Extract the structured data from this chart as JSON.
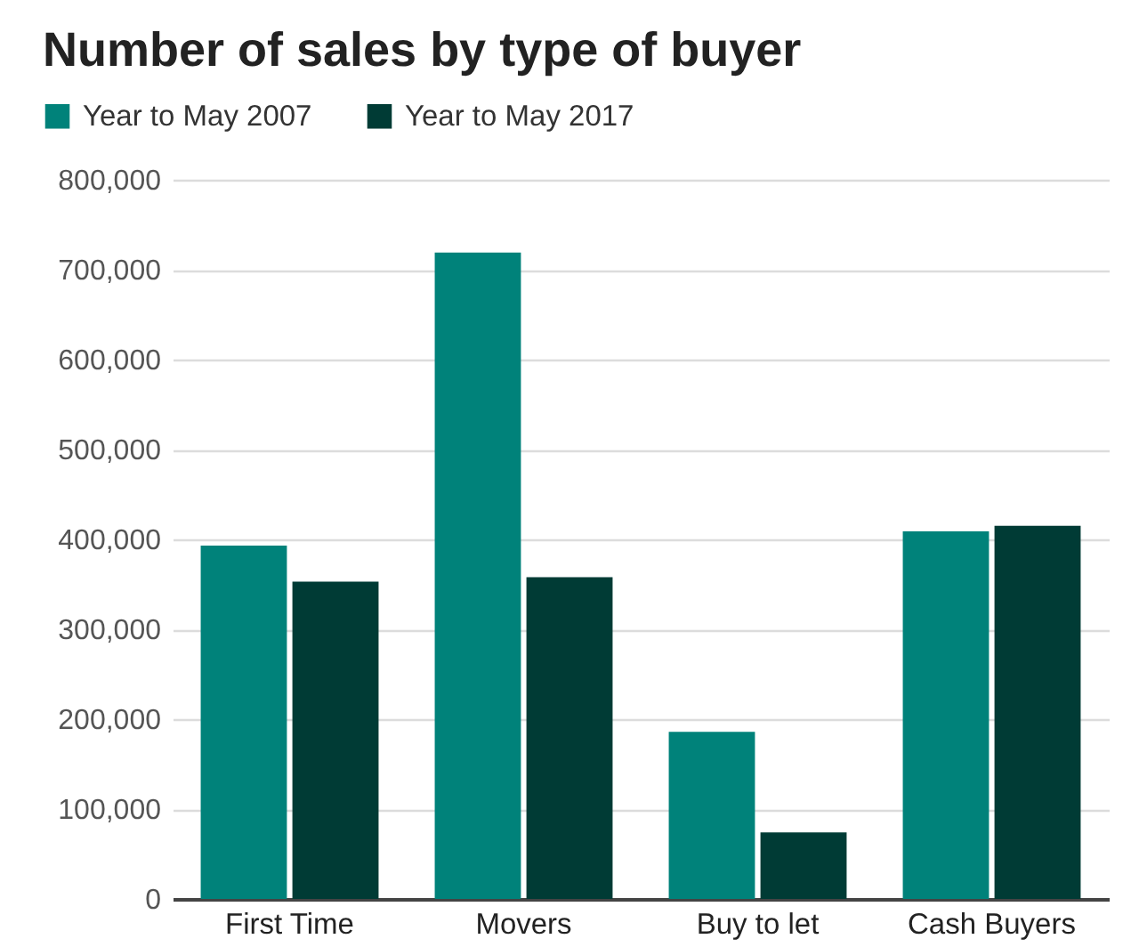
{
  "chart_data": {
    "type": "bar",
    "title": "Number of sales by type of buyer",
    "categories": [
      "First Time",
      "Movers",
      "Buy to let",
      "Cash Buyers"
    ],
    "series": [
      {
        "name": "Year to May 2007",
        "color": "#00827a",
        "values": [
          393000,
          719000,
          186000,
          409000
        ]
      },
      {
        "name": "Year to May 2017",
        "color": "#003b35",
        "values": [
          353000,
          358000,
          74000,
          415000
        ]
      }
    ],
    "ylim": [
      0,
      800000
    ],
    "yticks": [
      0,
      {
        "value": 100000,
        "label": "100,000"
      },
      {
        "value": 200000,
        "label": "200,000"
      },
      {
        "value": 300000,
        "label": "300,000"
      },
      {
        "value": 400000,
        "label": "400,000"
      },
      {
        "value": 500000,
        "label": "500,000"
      },
      {
        "value": 600000,
        "label": "600,000"
      },
      {
        "value": 700000,
        "label": "700,000"
      },
      {
        "value": 800000,
        "label": "800,000"
      }
    ],
    "grid": "y",
    "legend": "top left"
  }
}
